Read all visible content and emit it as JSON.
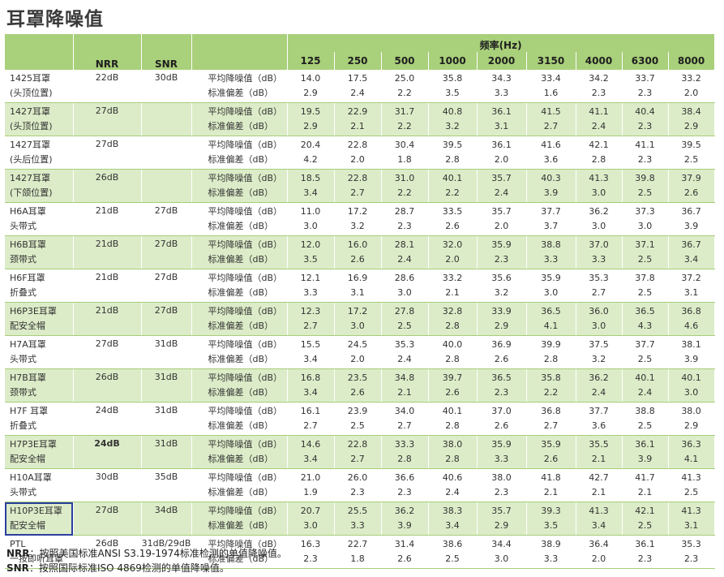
{
  "title": "耳罩降噪值",
  "header": {
    "nrr": "NRR",
    "snr": "SNR",
    "freq_title": "频率(Hz)",
    "frequencies": [
      "125",
      "250",
      "500",
      "1000",
      "2000",
      "3150",
      "4000",
      "6300",
      "8000"
    ]
  },
  "rows": [
    {
      "name": "1425耳罩",
      "sub": "(头顶位置)",
      "nrr": "22dB",
      "snr": "30dB",
      "label1": "平均降噪值（dB）",
      "label2": "标准偏差（dB）",
      "mean": [
        "14.0",
        "17.5",
        "25.0",
        "35.8",
        "34.3",
        "33.4",
        "34.2",
        "33.7",
        "33.2"
      ],
      "sd": [
        "2.9",
        "2.4",
        "2.2",
        "3.5",
        "3.3",
        "1.6",
        "2.3",
        "2.3",
        "2.0"
      ]
    },
    {
      "name": "1427耳罩",
      "sub": "(头顶位置)",
      "nrr": "27dB",
      "snr": "",
      "label1": "平均降噪值（dB）",
      "label2": "标准偏差（dB）",
      "mean": [
        "19.5",
        "22.9",
        "31.7",
        "40.8",
        "36.1",
        "41.5",
        "41.1",
        "40.4",
        "38.4"
      ],
      "sd": [
        "2.9",
        "2.1",
        "2.2",
        "3.2",
        "3.1",
        "2.7",
        "2.4",
        "2.3",
        "2.9"
      ]
    },
    {
      "name": "1427耳罩",
      "sub": "(头后位置)",
      "nrr": "27dB",
      "snr": "",
      "label1": "平均降噪值（dB）",
      "label2": "标准偏差（dB）",
      "mean": [
        "20.4",
        "22.8",
        "30.4",
        "39.5",
        "36.1",
        "41.6",
        "42.1",
        "41.1",
        "39.5"
      ],
      "sd": [
        "4.2",
        "2.0",
        "1.8",
        "2.8",
        "2.0",
        "3.6",
        "2.8",
        "2.3",
        "2.5"
      ]
    },
    {
      "name": "1427耳罩",
      "sub": "(下颌位置)",
      "nrr": "26dB",
      "snr": "",
      "label1": "平均降噪值（dB）",
      "label2": "标准偏差（dB）",
      "mean": [
        "18.5",
        "22.8",
        "31.0",
        "40.1",
        "35.7",
        "40.3",
        "41.3",
        "39.8",
        "37.9"
      ],
      "sd": [
        "3.4",
        "2.7",
        "2.2",
        "2.2",
        "2.4",
        "3.9",
        "3.0",
        "2.5",
        "2.6"
      ]
    },
    {
      "name": "H6A耳罩",
      "sub": "头带式",
      "nrr": "21dB",
      "snr": "27dB",
      "label1": "平均降噪值（dB）",
      "label2": "标准偏差（dB）",
      "mean": [
        "11.0",
        "17.2",
        "28.7",
        "33.5",
        "35.7",
        "37.7",
        "36.2",
        "37.3",
        "36.7"
      ],
      "sd": [
        "3.0",
        "3.2",
        "2.3",
        "2.6",
        "2.0",
        "3.7",
        "3.0",
        "3.0",
        "3.9"
      ]
    },
    {
      "name": "H6B耳罩",
      "sub": "颈带式",
      "nrr": "21dB",
      "snr": "27dB",
      "label1": "平均降噪值（dB）",
      "label2": "标准偏差（dB）",
      "mean": [
        "12.0",
        "16.0",
        "28.1",
        "32.0",
        "35.9",
        "38.8",
        "37.0",
        "37.1",
        "36.7"
      ],
      "sd": [
        "3.5",
        "2.6",
        "2.4",
        "2.0",
        "2.3",
        "3.3",
        "3.3",
        "2.5",
        "3.4"
      ]
    },
    {
      "name": "H6F耳罩",
      "sub": "折叠式",
      "nrr": "21dB",
      "snr": "27dB",
      "label1": "平均降噪值（dB）",
      "label2": "标准偏差（dB）",
      "mean": [
        "12.1",
        "16.9",
        "28.6",
        "33.2",
        "35.6",
        "35.9",
        "35.3",
        "37.8",
        "37.2"
      ],
      "sd": [
        "3.3",
        "3.1",
        "3.0",
        "2.1",
        "3.2",
        "3.0",
        "2.7",
        "2.5",
        "3.1"
      ]
    },
    {
      "name": "H6P3E耳罩",
      "sub": "配安全帽",
      "nrr": "21dB",
      "snr": "27dB",
      "label1": "平均降噪值（dB）",
      "label2": "标准偏差（dB）",
      "mean": [
        "12.3",
        "17.2",
        "27.8",
        "32.8",
        "33.9",
        "36.5",
        "36.0",
        "36.5",
        "36.8"
      ],
      "sd": [
        "2.7",
        "3.0",
        "2.5",
        "2.8",
        "2.9",
        "4.1",
        "3.0",
        "4.3",
        "4.6"
      ]
    },
    {
      "name": "H7A耳罩",
      "sub": "头带式",
      "nrr": "27dB",
      "snr": "31dB",
      "label1": "平均降噪值（dB）",
      "label2": "标准偏差（dB）",
      "mean": [
        "15.5",
        "24.5",
        "35.3",
        "40.0",
        "36.9",
        "39.9",
        "37.5",
        "37.7",
        "38.1"
      ],
      "sd": [
        "3.4",
        "2.0",
        "2.4",
        "2.8",
        "2.6",
        "2.8",
        "3.2",
        "2.5",
        "3.9"
      ]
    },
    {
      "name": "H7B耳罩",
      "sub": "颈带式",
      "nrr": "26dB",
      "snr": "31dB",
      "label1": "平均降噪值（dB）",
      "label2": "标准偏差（dB）",
      "mean": [
        "16.8",
        "23.5",
        "34.8",
        "39.7",
        "36.5",
        "35.8",
        "36.2",
        "40.1",
        "40.1"
      ],
      "sd": [
        "3.4",
        "2.6",
        "2.1",
        "2.6",
        "2.3",
        "2.2",
        "2.4",
        "2.4",
        "3.0"
      ]
    },
    {
      "name": "H7F 耳罩",
      "sub": "折叠式",
      "nrr": "24dB",
      "snr": "31dB",
      "label1": "平均降噪值（dB）",
      "label2": "标准偏差（dB）",
      "mean": [
        "16.1",
        "23.9",
        "34.0",
        "40.1",
        "37.0",
        "36.8",
        "37.7",
        "38.8",
        "38.0"
      ],
      "sd": [
        "2.7",
        "2.5",
        "2.7",
        "2.8",
        "2.6",
        "2.7",
        "3.6",
        "2.5",
        "2.9"
      ]
    },
    {
      "name": "H7P3E耳罩",
      "sub": "配安全帽",
      "nrr": "24dB",
      "snr": "31dB",
      "label1": "平均降噪值（dB）",
      "label2": "标准偏差（dB）",
      "mean": [
        "14.6",
        "22.8",
        "33.3",
        "38.0",
        "35.9",
        "35.9",
        "35.5",
        "36.1",
        "36.3"
      ],
      "sd": [
        "3.4",
        "2.7",
        "2.8",
        "2.8",
        "3.3",
        "2.6",
        "2.1",
        "3.9",
        "4.1"
      ]
    },
    {
      "name": "H10A耳罩",
      "sub": "头带式",
      "nrr": "30dB",
      "snr": "35dB",
      "label1": "平均降噪值（dB）",
      "label2": "标准偏差（dB）",
      "mean": [
        "21.0",
        "26.0",
        "36.6",
        "40.6",
        "38.0",
        "41.8",
        "42.7",
        "41.7",
        "41.3"
      ],
      "sd": [
        "1.9",
        "2.3",
        "2.3",
        "2.4",
        "2.3",
        "2.1",
        "2.1",
        "2.1",
        "2.5"
      ]
    },
    {
      "name": "H10P3E耳罩",
      "sub": "配安全帽",
      "nrr": "27dB",
      "snr": "34dB",
      "label1": "平均降噪值（dB）",
      "label2": "标准偏差（dB）",
      "mean": [
        "20.7",
        "25.5",
        "36.2",
        "38.3",
        "35.7",
        "39.3",
        "41.3",
        "42.1",
        "41.3"
      ],
      "sd": [
        "3.0",
        "3.3",
        "3.9",
        "3.4",
        "2.9",
        "3.5",
        "3.4",
        "2.5",
        "3.1"
      ]
    },
    {
      "name": "PTL",
      "sub": "一按即听耳罩",
      "nrr": "26dB",
      "snr": "31dB/29dB",
      "label1": "平均降噪值（dB）",
      "label2": "标准偏差（dB）",
      "mean": [
        "16.3",
        "22.7",
        "31.4",
        "38.6",
        "34.4",
        "38.9",
        "36.4",
        "36.1",
        "35.3"
      ],
      "sd": [
        "2.3",
        "1.8",
        "2.6",
        "2.5",
        "3.0",
        "3.3",
        "2.0",
        "2.3",
        "2.3"
      ]
    }
  ],
  "notes": {
    "nrr_key": "NRR",
    "nrr_text": "：按照美国标准ANSI S3.19-1974标准检测的单值降噪值。",
    "snr_key": "SNR",
    "snr_text": "：按照国际标准ISO 4869检测的单值降噪值。"
  }
}
